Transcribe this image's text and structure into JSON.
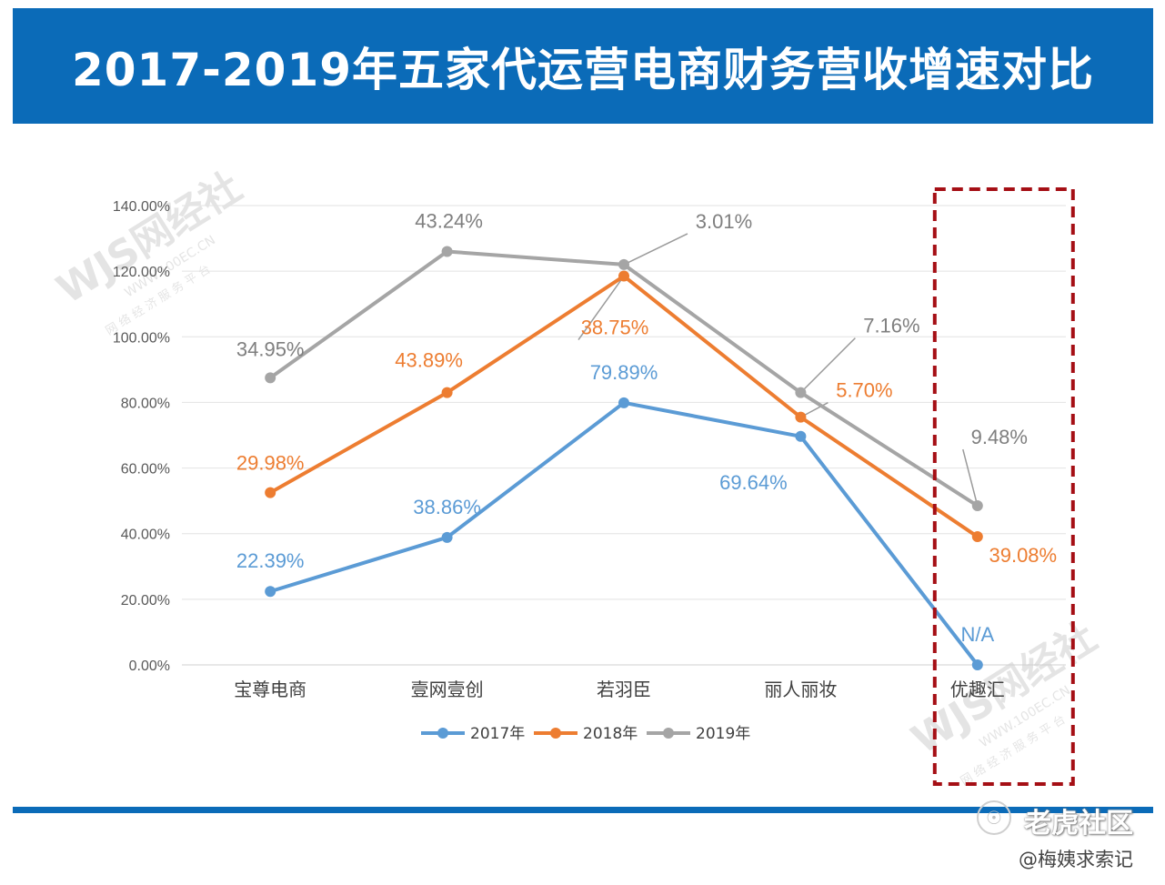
{
  "title": "2017-2019年五家代运营电商财务营收增速对比",
  "chart_data": {
    "type": "line",
    "categories": [
      "宝尊电商",
      "壹网壹创",
      "若羽臣",
      "丽人丽妆",
      "优趣汇"
    ],
    "ylim": [
      0,
      140
    ],
    "y_ticks": [
      "0.00%",
      "20.00%",
      "40.00%",
      "60.00%",
      "80.00%",
      "100.00%",
      "120.00%",
      "140.00%"
    ],
    "grid": true,
    "legend_position": "bottom",
    "series": [
      {
        "name": "2017年",
        "color": "#5b9bd5",
        "values": [
          22.39,
          38.86,
          79.89,
          69.64,
          0
        ],
        "labels": [
          "22.39%",
          "38.86%",
          "79.89%",
          "69.64%",
          "N/A"
        ]
      },
      {
        "name": "2018年",
        "color": "#ed7d31",
        "values": [
          52.5,
          83,
          118.5,
          75.5,
          39.08
        ],
        "labels": [
          "29.98%",
          "43.89%",
          "38.75%",
          "5.70%",
          "39.08%"
        ]
      },
      {
        "name": "2019年",
        "color": "#a5a5a5",
        "values": [
          87.5,
          126,
          122,
          83,
          48.5
        ],
        "labels": [
          "34.95%",
          "43.24%",
          "3.01%",
          "7.16%",
          "9.48%"
        ]
      }
    ],
    "highlight_category": "优趣汇",
    "highlight_color": "#a50f15"
  },
  "watermark": {
    "logo": "WJS网经社",
    "url": "WWW.100EC.CN",
    "tagline": "网 络 经 济 服 务 平 台"
  },
  "credits": {
    "platform": "老虎社区",
    "author": "@梅姨求索记"
  }
}
